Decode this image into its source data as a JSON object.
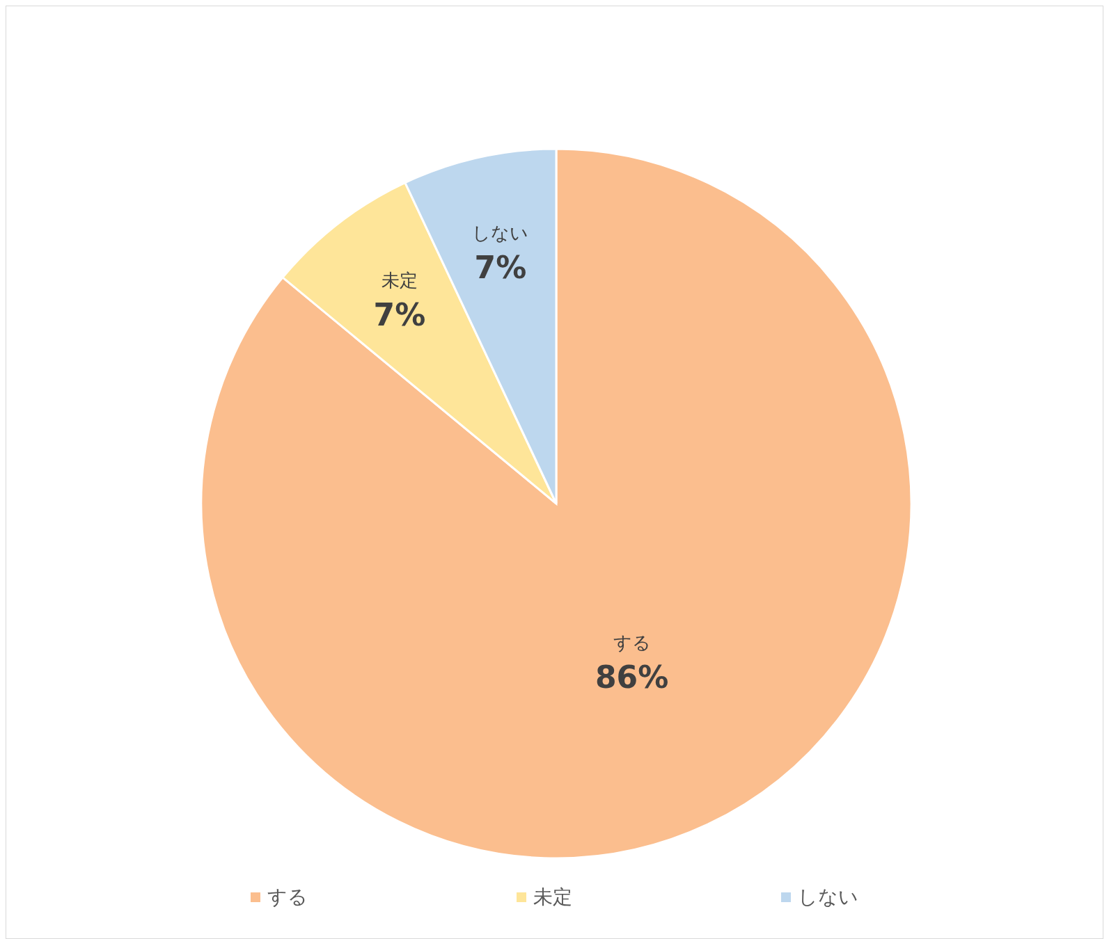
{
  "chart_data": {
    "type": "pie",
    "categories": [
      "する",
      "未定",
      "しない"
    ],
    "values": [
      86,
      7,
      7
    ],
    "value_labels": [
      "86%",
      "7%",
      "7%"
    ],
    "colors": [
      "#fbbe8e",
      "#fee599",
      "#bdd7ee"
    ],
    "legend": "bottom"
  }
}
